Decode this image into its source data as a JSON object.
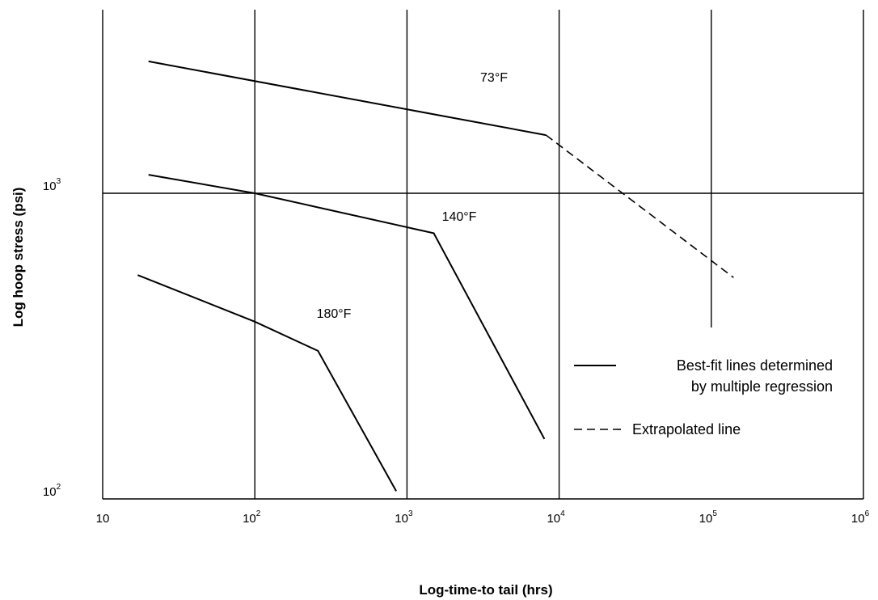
{
  "chart_data": {
    "type": "line",
    "x_scale": "log",
    "y_scale": "log",
    "xlim": [
      10,
      1000000
    ],
    "ylim": [
      100,
      3000
    ],
    "xlabel": "Log-time-to tail (hrs)",
    "ylabel": "Log hoop stress (psi)",
    "x_ticks": [
      {
        "base": "10",
        "exp": ""
      },
      {
        "base": "10",
        "exp": "2"
      },
      {
        "base": "10",
        "exp": "3"
      },
      {
        "base": "10",
        "exp": "4"
      },
      {
        "base": "10",
        "exp": "5"
      },
      {
        "base": "10",
        "exp": "6"
      }
    ],
    "y_ticks": [
      {
        "base": "10",
        "exp": "2"
      },
      {
        "base": "10",
        "exp": "3"
      }
    ],
    "series": [
      {
        "name": "73°F",
        "points": [
          [
            20,
            2700
          ],
          [
            8200,
            1550
          ]
        ],
        "extrapolated": [
          [
            8200,
            1550
          ],
          [
            140000,
            530
          ]
        ]
      },
      {
        "name": "140°F",
        "points": [
          [
            20,
            1150
          ],
          [
            100,
            1000
          ],
          [
            1500,
            740
          ],
          [
            8000,
            157
          ]
        ]
      },
      {
        "name": "180°F",
        "points": [
          [
            17,
            540
          ],
          [
            100,
            380
          ],
          [
            260,
            305
          ],
          [
            850,
            106
          ]
        ]
      }
    ],
    "legend": {
      "solid_line_1": "Best-fit lines determined",
      "solid_line_2": "by multiple regression",
      "dashed_line": "Extrapolated line"
    }
  }
}
